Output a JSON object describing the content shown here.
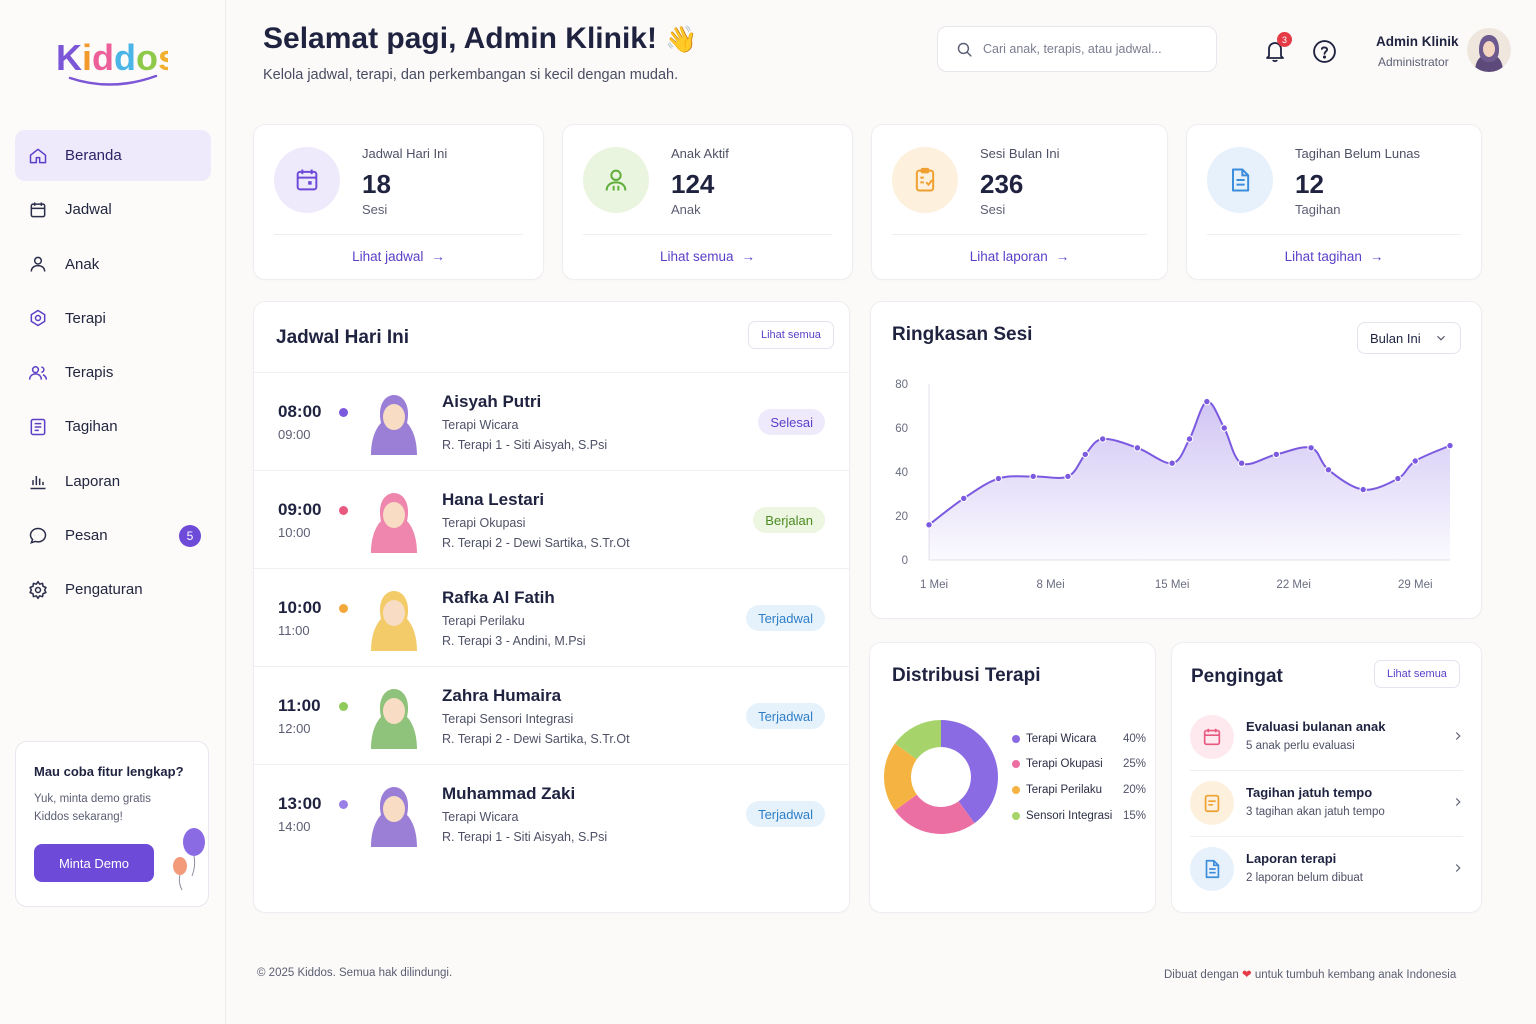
{
  "app": {
    "logo_text": "Kiddos"
  },
  "sidebar": {
    "items": [
      {
        "label": "Beranda",
        "icon": "home-icon"
      },
      {
        "label": "Jadwal",
        "icon": "calendar-icon"
      },
      {
        "label": "Anak",
        "icon": "user-icon"
      },
      {
        "label": "Terapi",
        "icon": "puzzle-icon"
      },
      {
        "label": "Terapis",
        "icon": "users-icon"
      },
      {
        "label": "Tagihan",
        "icon": "invoice-icon"
      },
      {
        "label": "Laporan",
        "icon": "bar-chart-icon"
      },
      {
        "label": "Pesan",
        "icon": "message-icon",
        "badge": "5"
      },
      {
        "label": "Pengaturan",
        "icon": "gear-icon"
      }
    ],
    "promo": {
      "title": "Mau coba fitur lengkap?",
      "text": "Yuk, minta demo gratis Kiddos sekarang!",
      "button": "Minta Demo"
    }
  },
  "header": {
    "greeting": "Selamat pagi, Admin Klinik!",
    "wave": "👋",
    "subtitle": "Kelola jadwal, terapi, dan perkembangan si kecil dengan mudah.",
    "search_placeholder": "Cari anak, terapis, atau jadwal...",
    "notif_count": "3",
    "user_name": "Admin Klinik",
    "user_role": "Administrator"
  },
  "stats": [
    {
      "label": "Jadwal Hari Ini",
      "value": "18",
      "unit": "Sesi",
      "link": "Lihat jadwal",
      "arrow": "→"
    },
    {
      "label": "Anak Aktif",
      "value": "124",
      "unit": "Anak",
      "link": "Lihat semua",
      "arrow": "→"
    },
    {
      "label": "Sesi Bulan Ini",
      "value": "236",
      "unit": "Sesi",
      "link": "Lihat laporan",
      "arrow": "→"
    },
    {
      "label": "Tagihan Belum Lunas",
      "value": "12",
      "unit": "Tagihan",
      "link": "Lihat tagihan",
      "arrow": "→"
    }
  ],
  "schedule": {
    "title": "Jadwal Hari Ini",
    "see_all": "Lihat semua",
    "rows": [
      {
        "start": "08:00",
        "end": "09:00",
        "name": "Aisyah Putri",
        "therapy": "Terapi Wicara",
        "room": "R. Terapi 1 - Siti Aisyah, S.Psi",
        "status": "Selesai"
      },
      {
        "start": "09:00",
        "end": "10:00",
        "name": "Hana Lestari",
        "therapy": "Terapi Okupasi",
        "room": "R. Terapi 2 - Dewi Sartika, S.Tr.Ot",
        "status": "Berjalan"
      },
      {
        "start": "10:00",
        "end": "11:00",
        "name": "Rafka Al Fatih",
        "therapy": "Terapi Perilaku",
        "room": "R. Terapi 3 - Andini, M.Psi",
        "status": "Terjadwal"
      },
      {
        "start": "11:00",
        "end": "12:00",
        "name": "Zahra Humaira",
        "therapy": "Terapi Sensori Integrasi",
        "room": "R. Terapi 2 - Dewi Sartika, S.Tr.Ot",
        "status": "Terjadwal"
      },
      {
        "start": "13:00",
        "end": "14:00",
        "name": "Muhammad Zaki",
        "therapy": "Terapi Wicara",
        "room": "R. Terapi 1 - Siti Aisyah, S.Psi",
        "status": "Terjadwal"
      }
    ]
  },
  "summary": {
    "title": "Ringkasan Sesi",
    "period": "Bulan Ini"
  },
  "chart_data": [
    {
      "type": "area",
      "title": "Ringkasan Sesi",
      "x_ticks": [
        "1 Mei",
        "8 Mei",
        "15 Mei",
        "22 Mei",
        "29 Mei"
      ],
      "y_ticks": [
        "0",
        "20",
        "40",
        "60",
        "80"
      ],
      "ylim": [
        0,
        80
      ],
      "xlim": [
        1,
        31
      ],
      "x": [
        1,
        3,
        5,
        7,
        9,
        10,
        11,
        13,
        15,
        16,
        17,
        18,
        19,
        21,
        23,
        24,
        26,
        28,
        29,
        31
      ],
      "values": [
        16,
        28,
        37,
        38,
        38,
        48,
        55,
        51,
        44,
        55,
        72,
        60,
        44,
        48,
        51,
        41,
        32,
        37,
        45,
        52
      ],
      "color": "#7b5ae0",
      "grid": false
    },
    {
      "type": "pie",
      "title": "Distribusi Terapi",
      "donut": true,
      "categories": [
        "Terapi Wicara",
        "Terapi Okupasi",
        "Terapi Perilaku",
        "Sensori Integrasi"
      ],
      "values": [
        40,
        25,
        20,
        15
      ],
      "labels": [
        "40%",
        "25%",
        "20%",
        "15%"
      ],
      "colors": [
        "#8b6be3",
        "#ec6fa3",
        "#f5b342",
        "#a7d46a"
      ]
    }
  ],
  "distribution": {
    "title": "Distribusi Terapi"
  },
  "reminders": {
    "title": "Pengingat",
    "see_all": "Lihat semua",
    "items": [
      {
        "title": "Evaluasi bulanan anak",
        "sub": "5 anak perlu evaluasi"
      },
      {
        "title": "Tagihan jatuh tempo",
        "sub": "3 tagihan akan jatuh tempo"
      },
      {
        "title": "Laporan terapi",
        "sub": "2 laporan belum dibuat"
      }
    ]
  },
  "footer": {
    "copyright": "© 2025 Kiddos. Semua hak dilindungi.",
    "made_with_pre": "Dibuat dengan",
    "heart": "❤",
    "made_with_post": "untuk tumbuh kembang anak Indonesia"
  }
}
